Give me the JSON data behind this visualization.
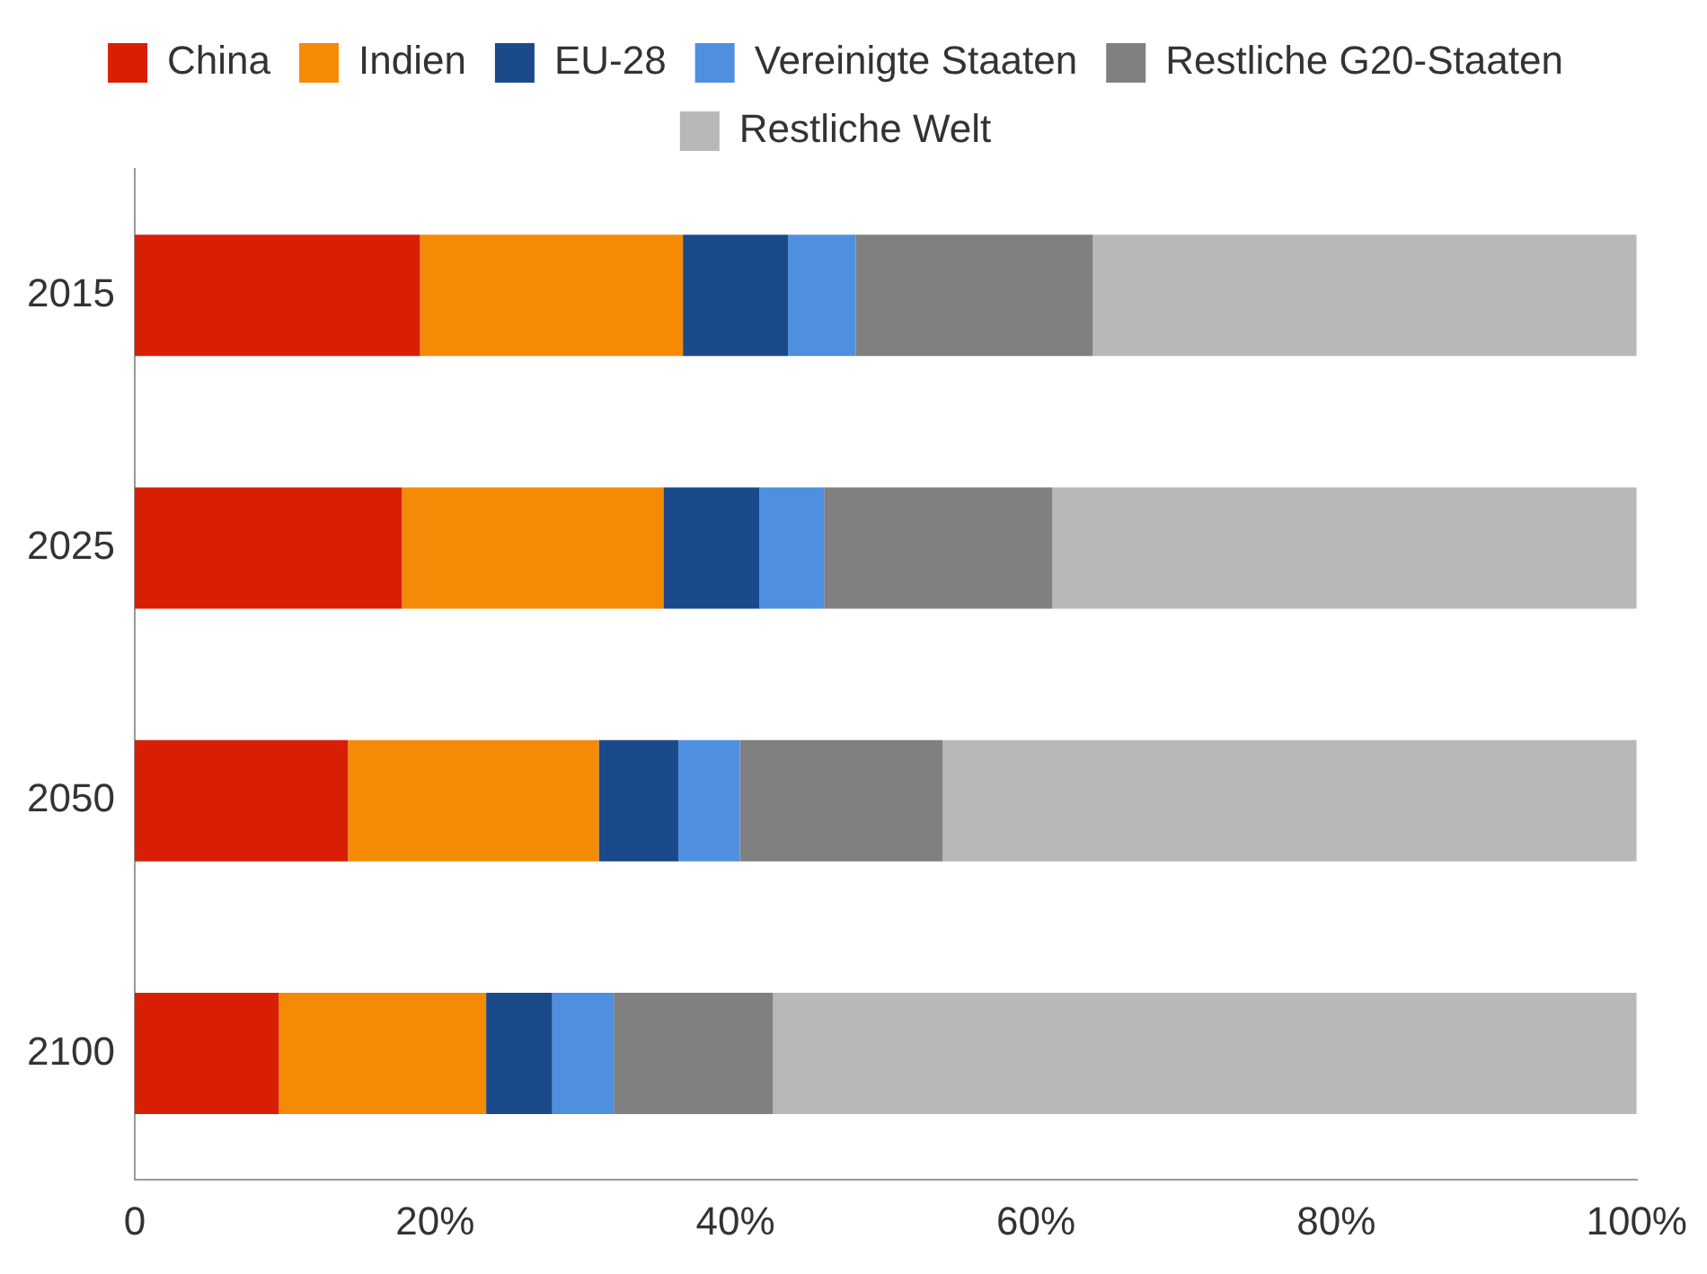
{
  "chart_data": {
    "type": "bar",
    "orientation": "horizontal",
    "stacked": true,
    "categories": [
      "2015",
      "2025",
      "2050",
      "2100"
    ],
    "series": [
      {
        "name": "China",
        "color": "#d81e05",
        "values": [
          19.0,
          17.8,
          14.2,
          9.6
        ]
      },
      {
        "name": "Indien",
        "color": "#f58a07",
        "values": [
          17.5,
          17.4,
          16.7,
          13.8
        ]
      },
      {
        "name": "EU-28",
        "color": "#1a4a8a",
        "values": [
          7.0,
          6.4,
          5.3,
          4.4
        ]
      },
      {
        "name": "Vereinigte Staaten",
        "color": "#4f8fe0",
        "values": [
          4.5,
          4.3,
          4.1,
          4.1
        ]
      },
      {
        "name": "Restliche G20-Staaten",
        "color": "#808080",
        "values": [
          15.8,
          15.2,
          13.5,
          10.6
        ]
      },
      {
        "name": "Restliche Welt",
        "color": "#b8b8b8",
        "values": [
          36.2,
          38.9,
          46.2,
          57.5
        ]
      }
    ],
    "xlim": [
      0,
      100
    ],
    "xticks": [
      0,
      {
        "value": 20,
        "label": "20%"
      },
      {
        "value": 40,
        "label": "40%"
      },
      {
        "value": 60,
        "label": "60%"
      },
      {
        "value": 80,
        "label": "80%"
      },
      {
        "value": 100,
        "label": "100%"
      }
    ],
    "grid": false,
    "legend": "top"
  }
}
